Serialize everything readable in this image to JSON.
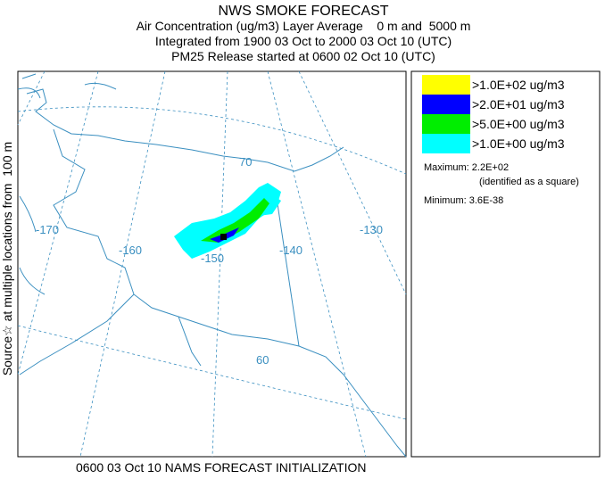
{
  "header": {
    "lines": [
      "NWS SMOKE FORECAST",
      "Air Concentration (ug/m3) Layer Average    0 m and  5000 m",
      "Integrated from 1900 03 Oct to 2000 03 Oct 10 (UTC)",
      "PM25 Release started at 0600 02 Oct 10 (UTC)"
    ]
  },
  "side_label": "Source☆ at multiple locations from  100 m",
  "map": {
    "labels": [
      "70",
      "-170",
      "-160",
      "-150",
      "-140",
      "-130",
      "60"
    ]
  },
  "legend": {
    "entries": [
      {
        "label": ">1.0E+02 ug/m3",
        "color": "#ffff00"
      },
      {
        "label": ">2.0E+01 ug/m3",
        "color": "#0000ff"
      },
      {
        "label": ">5.0E+00 ug/m3",
        "color": "#00ee00"
      },
      {
        "label": ">1.0E+00 ug/m3",
        "color": "#00ffff"
      }
    ],
    "maximum": "Maximum: 2.2E+02",
    "note": "(identified as a square)",
    "minimum": "Minimum: 3.6E-38"
  },
  "footer": "0600 03 Oct 10 NAMS FORECAST INITIALIZATION"
}
